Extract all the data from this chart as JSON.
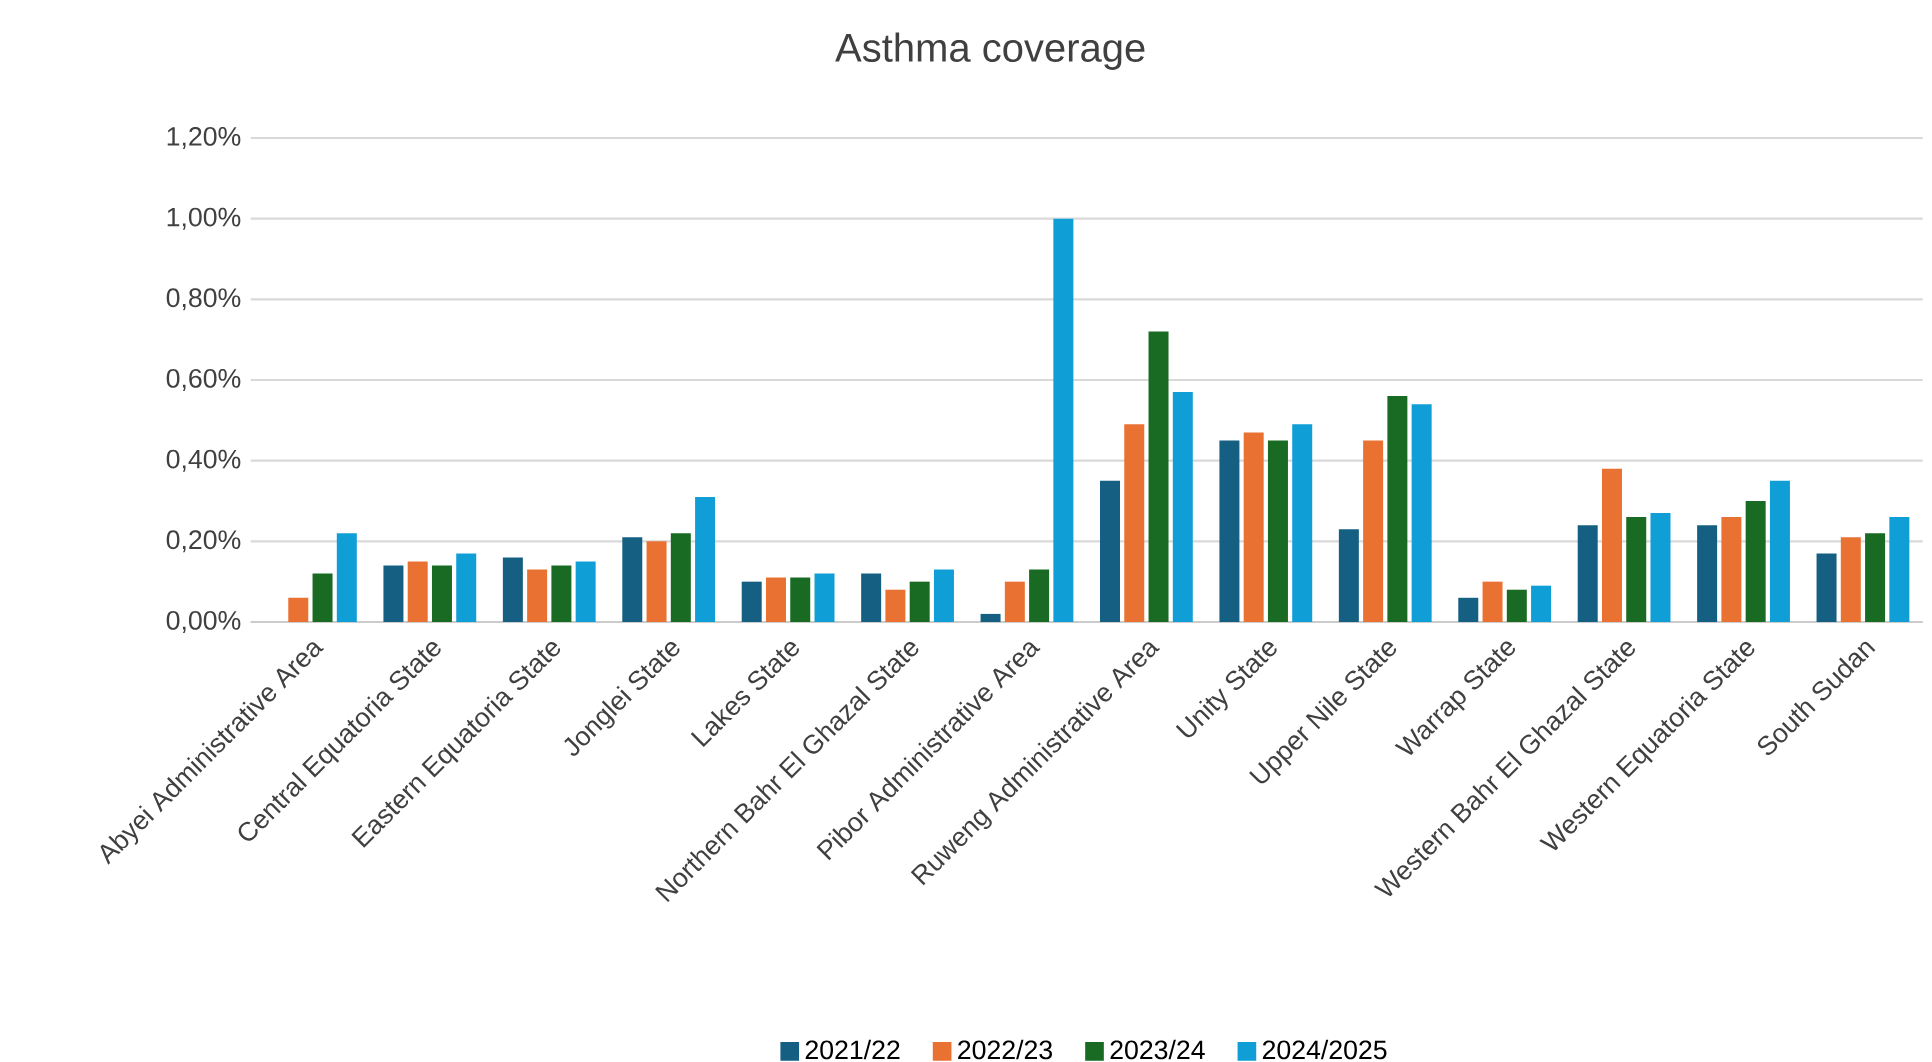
{
  "chart_data": {
    "type": "bar",
    "title": "Asthma coverage",
    "categories": [
      "Abyei Administrative Area",
      "Central Equatoria State",
      "Eastern Equatoria State",
      "Jonglei State",
      "Lakes State",
      "Northern Bahr El Ghazal State",
      "Pibor Administrative Area",
      "Ruweng Administrative Area",
      "Unity State",
      "Upper Nile State",
      "Warrap State",
      "Western Bahr El Ghazal State",
      "Western Equatoria State",
      "South Sudan"
    ],
    "series": [
      {
        "name": "2021/22",
        "color": "#156082",
        "values": [
          null,
          0.14,
          0.16,
          0.21,
          0.1,
          0.12,
          0.02,
          0.35,
          0.45,
          0.23,
          0.06,
          0.24,
          0.24,
          0.17
        ]
      },
      {
        "name": "2022/23",
        "color": "#e97132",
        "values": [
          0.06,
          0.15,
          0.13,
          0.2,
          0.11,
          0.08,
          0.1,
          0.49,
          0.47,
          0.45,
          0.1,
          0.38,
          0.26,
          0.21
        ]
      },
      {
        "name": "2023/24",
        "color": "#196b24",
        "values": [
          0.12,
          0.14,
          0.14,
          0.22,
          0.11,
          0.1,
          0.13,
          0.72,
          0.45,
          0.56,
          0.08,
          0.26,
          0.3,
          0.22
        ]
      },
      {
        "name": "2024/2025",
        "color": "#0f9ed5",
        "values": [
          0.22,
          0.17,
          0.15,
          0.31,
          0.12,
          0.13,
          1.0,
          0.57,
          0.49,
          0.54,
          0.09,
          0.27,
          0.35,
          0.26
        ]
      }
    ],
    "ylim": [
      0,
      1.2
    ],
    "yticks": [
      {
        "value": 0,
        "label": "0,00%"
      },
      {
        "value": 0.2,
        "label": "0,20%"
      },
      {
        "value": 0.4,
        "label": "0,40%"
      },
      {
        "value": 0.6,
        "label": "0,60%"
      },
      {
        "value": 0.8,
        "label": "0,80%"
      },
      {
        "value": 1.0,
        "label": "1,00%"
      },
      {
        "value": 1.2,
        "label": "1,20%"
      }
    ],
    "grid": "y",
    "legend": "bottom"
  }
}
